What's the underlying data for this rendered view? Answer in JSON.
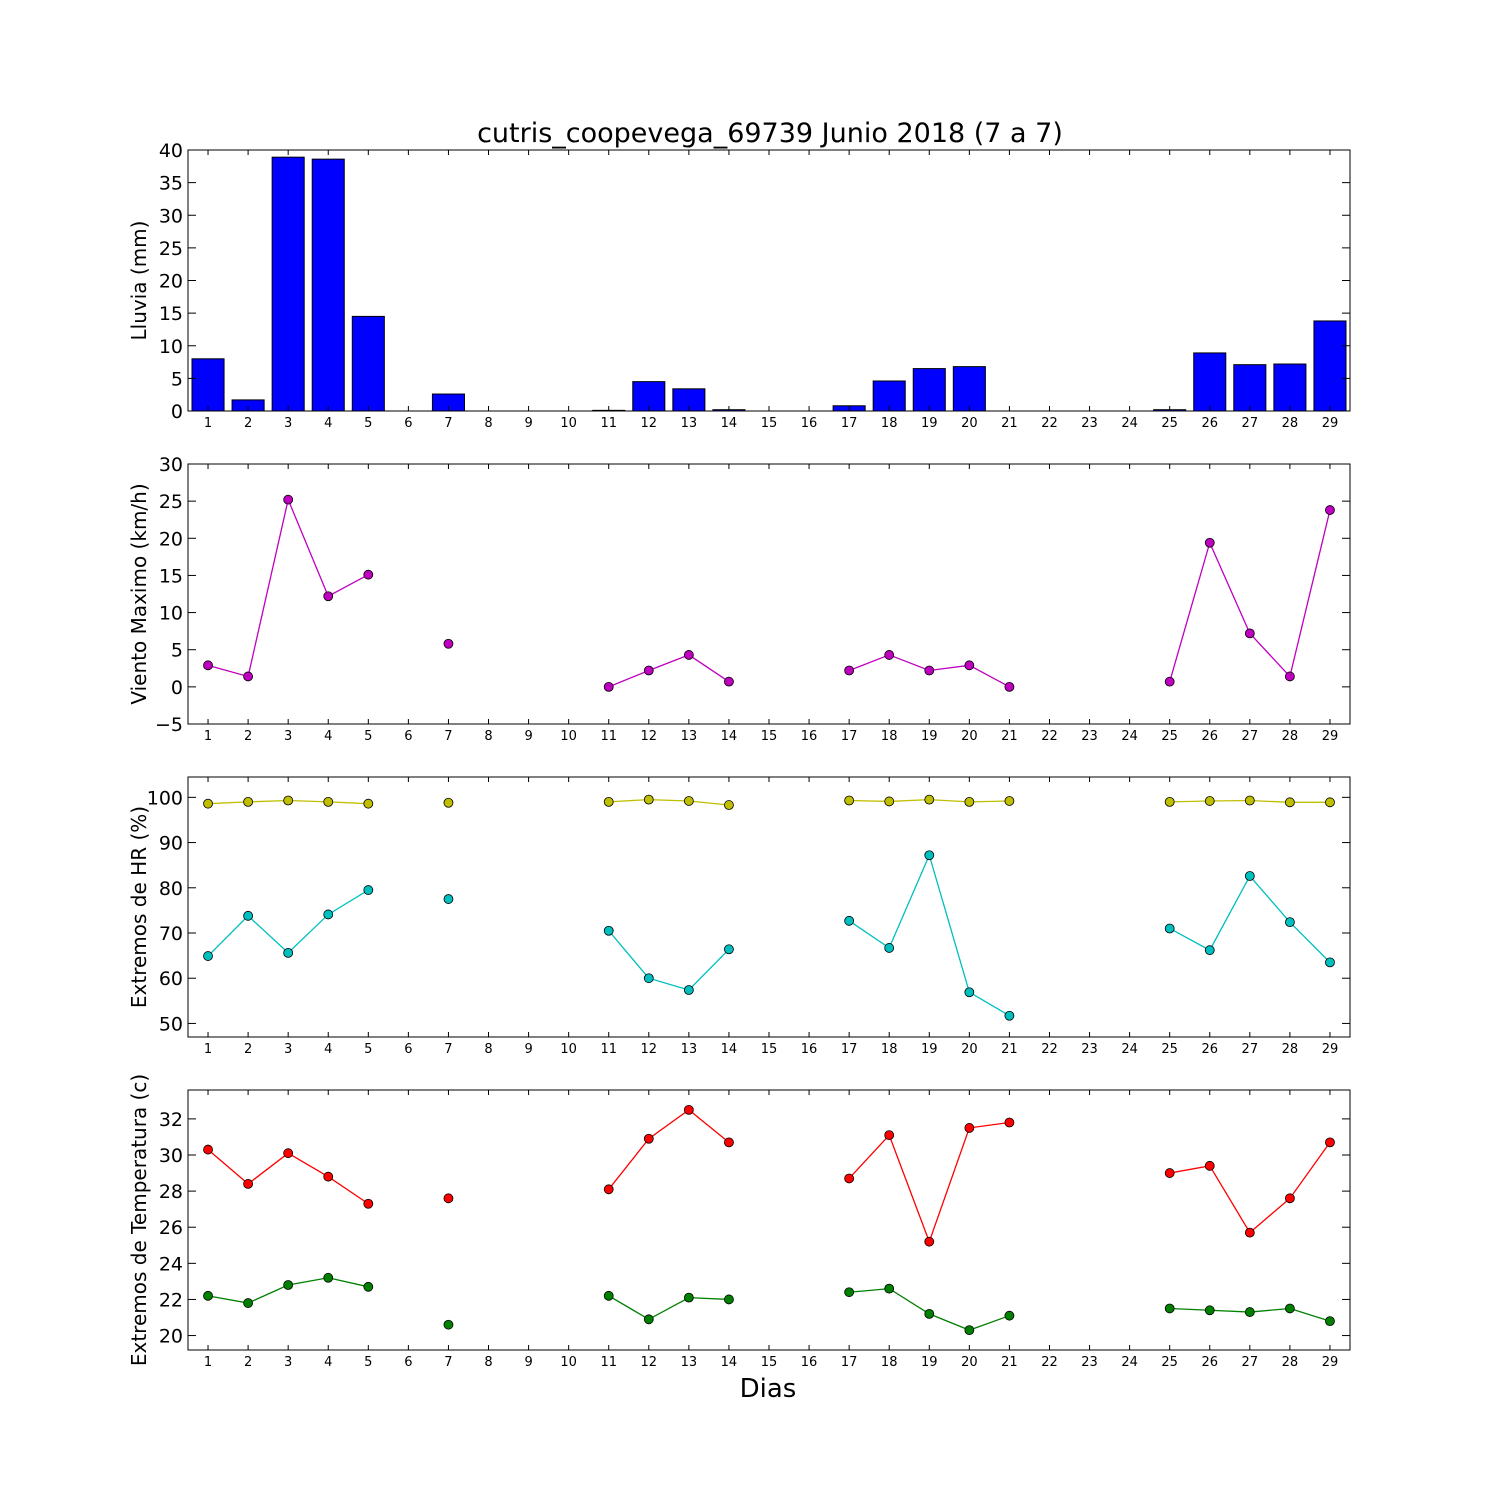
{
  "title": "cutris_coopevega_69739 Junio 2018  (7 a 7)",
  "xlabel": "Dias",
  "chart_data": [
    {
      "type": "bar",
      "ylabel": "Lluvia (mm)",
      "ylim": [
        0,
        40
      ],
      "yticks": [
        0,
        5,
        10,
        15,
        20,
        25,
        30,
        35,
        40
      ],
      "categories": [
        "1",
        "2",
        "3",
        "4",
        "5",
        "6",
        "7",
        "8",
        "9",
        "10",
        "11",
        "12",
        "13",
        "14",
        "15",
        "16",
        "17",
        "18",
        "19",
        "20",
        "21",
        "22",
        "23",
        "24",
        "25",
        "26",
        "27",
        "28",
        "29"
      ],
      "series": [
        {
          "color": "#0000ff",
          "values": [
            8.0,
            1.7,
            38.9,
            38.6,
            14.5,
            0,
            2.6,
            0,
            0,
            0,
            0.1,
            4.5,
            3.4,
            0.2,
            0,
            0,
            0.8,
            4.6,
            6.5,
            6.8,
            0,
            0,
            0,
            0,
            0.2,
            8.9,
            7.1,
            7.2,
            13.8
          ]
        }
      ]
    },
    {
      "type": "line",
      "ylabel": "Viento Maximo (km/h)",
      "ylim": [
        -5,
        30
      ],
      "yticks": [
        -5,
        0,
        5,
        10,
        15,
        20,
        25,
        30
      ],
      "categories": [
        "1",
        "2",
        "3",
        "4",
        "5",
        "6",
        "7",
        "8",
        "9",
        "10",
        "11",
        "12",
        "13",
        "14",
        "15",
        "16",
        "17",
        "18",
        "19",
        "20",
        "21",
        "22",
        "23",
        "24",
        "25",
        "26",
        "27",
        "28",
        "29"
      ],
      "series": [
        {
          "color": "#bf00bf",
          "values": [
            2.9,
            1.4,
            25.2,
            12.2,
            15.1,
            null,
            5.8,
            null,
            null,
            null,
            0.0,
            2.2,
            4.3,
            0.7,
            null,
            null,
            2.2,
            4.3,
            2.2,
            2.9,
            0.0,
            null,
            null,
            null,
            0.7,
            19.4,
            7.2,
            1.4,
            23.8
          ]
        }
      ]
    },
    {
      "type": "line",
      "ylabel": "Extremos de HR (%)",
      "ylim": [
        47,
        104.5
      ],
      "yticks": [
        50,
        60,
        70,
        80,
        90,
        100
      ],
      "categories": [
        "1",
        "2",
        "3",
        "4",
        "5",
        "6",
        "7",
        "8",
        "9",
        "10",
        "11",
        "12",
        "13",
        "14",
        "15",
        "16",
        "17",
        "18",
        "19",
        "20",
        "21",
        "22",
        "23",
        "24",
        "25",
        "26",
        "27",
        "28",
        "29"
      ],
      "series": [
        {
          "color": "#bfbf00",
          "values": [
            98.6,
            99.0,
            99.3,
            99.0,
            98.6,
            null,
            98.8,
            null,
            null,
            null,
            99.0,
            99.5,
            99.2,
            98.3,
            null,
            null,
            99.3,
            99.1,
            99.5,
            99.0,
            99.2,
            null,
            null,
            null,
            99.0,
            99.2,
            99.3,
            98.9,
            98.9
          ]
        },
        {
          "color": "#00bfbf",
          "values": [
            64.9,
            73.8,
            65.6,
            74.1,
            79.5,
            null,
            77.5,
            null,
            null,
            null,
            70.5,
            60.0,
            57.4,
            66.4,
            null,
            null,
            72.7,
            66.7,
            87.2,
            56.9,
            51.7,
            null,
            null,
            null,
            71.0,
            66.2,
            82.6,
            72.4,
            63.5
          ]
        }
      ]
    },
    {
      "type": "line",
      "ylabel": "Extremos de Temperatura (c)",
      "ylim": [
        19.2,
        33.6
      ],
      "yticks": [
        20,
        22,
        24,
        26,
        28,
        30,
        32
      ],
      "categories": [
        "1",
        "2",
        "3",
        "4",
        "5",
        "6",
        "7",
        "8",
        "9",
        "10",
        "11",
        "12",
        "13",
        "14",
        "15",
        "16",
        "17",
        "18",
        "19",
        "20",
        "21",
        "22",
        "23",
        "24",
        "25",
        "26",
        "27",
        "28",
        "29"
      ],
      "series": [
        {
          "color": "#ff0000",
          "values": [
            30.3,
            28.4,
            30.1,
            28.8,
            27.3,
            null,
            27.6,
            null,
            null,
            null,
            28.1,
            30.9,
            32.5,
            30.7,
            null,
            null,
            28.7,
            31.1,
            25.2,
            31.5,
            31.8,
            null,
            null,
            null,
            29.0,
            29.4,
            25.7,
            27.6,
            30.7
          ]
        },
        {
          "color": "#008000",
          "values": [
            22.2,
            21.8,
            22.8,
            23.2,
            22.7,
            null,
            20.6,
            null,
            null,
            null,
            22.2,
            20.9,
            22.1,
            22.0,
            null,
            null,
            22.4,
            22.6,
            21.2,
            20.3,
            21.1,
            null,
            null,
            null,
            21.5,
            21.4,
            21.3,
            21.5,
            20.8
          ]
        }
      ]
    }
  ]
}
